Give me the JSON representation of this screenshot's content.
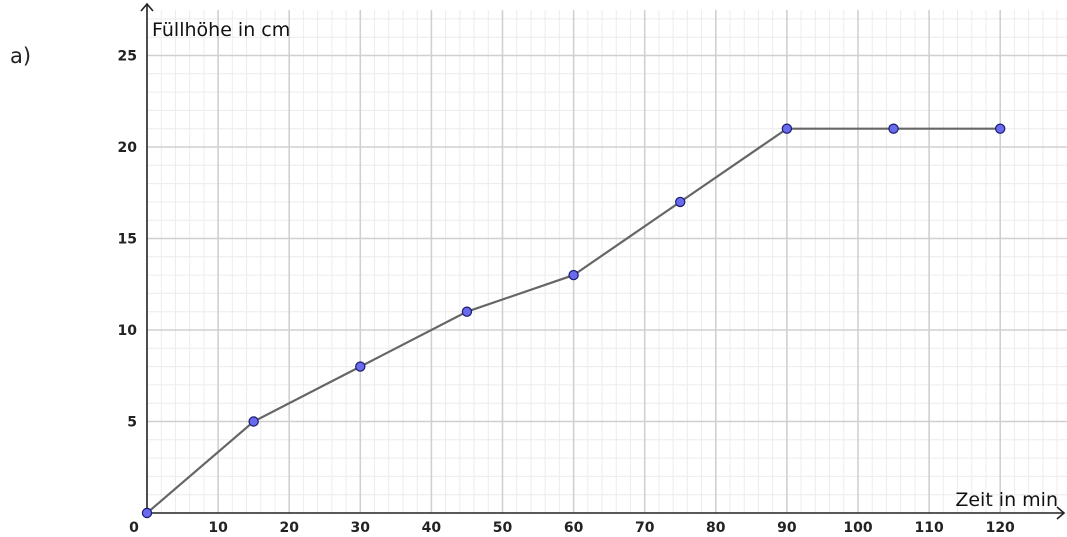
{
  "panel_label": "a)",
  "chart_data": {
    "type": "line",
    "title": "",
    "xlabel": "Zeit in min",
    "ylabel": "Füllhöhe in cm",
    "xlim": [
      0,
      130
    ],
    "ylim": [
      0,
      25
    ],
    "grid": true,
    "x_ticks": [
      0,
      10,
      20,
      30,
      40,
      50,
      60,
      70,
      80,
      90,
      100,
      110,
      120
    ],
    "y_ticks": [
      5,
      10,
      15,
      20,
      25
    ],
    "series": [
      {
        "x": [
          0,
          15,
          30,
          45,
          60,
          75,
          90,
          105,
          120
        ],
        "y": [
          0,
          5,
          8,
          11,
          13,
          17,
          21,
          21,
          21
        ]
      }
    ],
    "colors": {
      "line": "#666666",
      "marker_fill": "#6a6aee",
      "marker_stroke": "#1a1a6e",
      "grid_major": "#d0d0d0",
      "grid_minor": "#ececec",
      "axis": "#222222"
    }
  }
}
